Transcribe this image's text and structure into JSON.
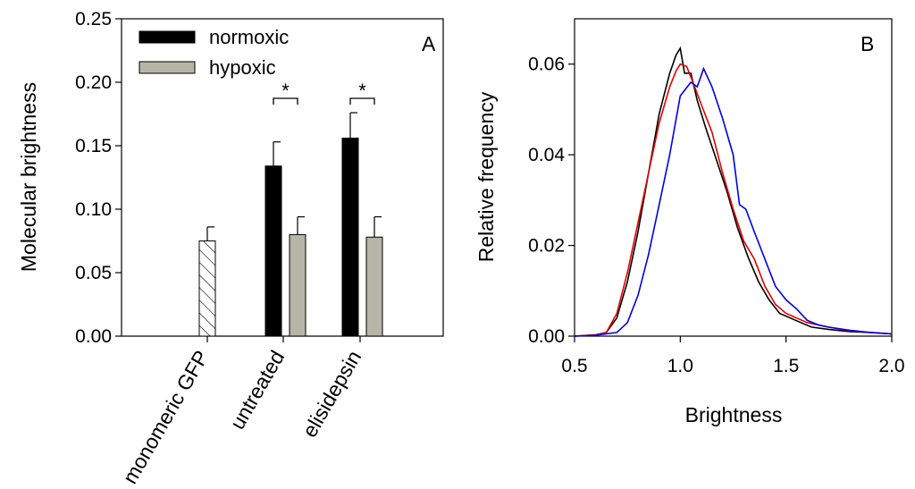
{
  "chart_data": [
    {
      "panel": "A",
      "type": "bar",
      "ylabel": "Molecular brightness",
      "xlabel": "",
      "ylim": [
        0,
        0.25
      ],
      "yticks": [
        "0.00",
        "0.05",
        "0.10",
        "0.15",
        "0.20",
        "0.25"
      ],
      "yticks_values": [
        0,
        0.05,
        0.1,
        0.15,
        0.2,
        0.25
      ],
      "categories": [
        "monomeric GFP",
        "untreated",
        "elisidepsin"
      ],
      "bars": [
        {
          "category": "monomeric GFP",
          "series": "monomeric GFP",
          "value": 0.075,
          "error": 0.011
        },
        {
          "category": "untreated",
          "series": "normoxic",
          "value": 0.134,
          "error": 0.019
        },
        {
          "category": "untreated",
          "series": "hypoxic",
          "value": 0.08,
          "error": 0.014
        },
        {
          "category": "elisidepsin",
          "series": "normoxic",
          "value": 0.156,
          "error": 0.02
        },
        {
          "category": "elisidepsin",
          "series": "hypoxic",
          "value": 0.078,
          "error": 0.016
        }
      ],
      "legend": [
        {
          "label": "normoxic",
          "color": "#000000"
        },
        {
          "label": "hypoxic",
          "color": "#b5b5a8"
        }
      ],
      "legend_position": "top-left",
      "significance": [
        {
          "category": "untreated",
          "label": "*"
        },
        {
          "category": "elisidepsin",
          "label": "*"
        }
      ]
    },
    {
      "panel": "B",
      "type": "line",
      "xlabel": "Brightness",
      "ylabel": "Relative frequency",
      "xlim": [
        0.5,
        2.0
      ],
      "ylim": [
        0,
        0.07
      ],
      "xticks": [
        "0.5",
        "1.0",
        "1.5",
        "2.0"
      ],
      "xticks_values": [
        0.5,
        1.0,
        1.5,
        2.0
      ],
      "yticks": [
        "0.00",
        "0.02",
        "0.04",
        "0.06"
      ],
      "yticks_values": [
        0,
        0.02,
        0.04,
        0.06
      ],
      "series": [
        {
          "name": "black",
          "color": "#000000",
          "points": [
            [
              0.5,
              0.0
            ],
            [
              0.6,
              0.0003
            ],
            [
              0.65,
              0.0008
            ],
            [
              0.7,
              0.004
            ],
            [
              0.75,
              0.012
            ],
            [
              0.8,
              0.023
            ],
            [
              0.85,
              0.036
            ],
            [
              0.9,
              0.049
            ],
            [
              0.95,
              0.058
            ],
            [
              0.98,
              0.062
            ],
            [
              1.0,
              0.0635
            ],
            [
              1.02,
              0.058
            ],
            [
              1.05,
              0.058
            ],
            [
              1.08,
              0.052
            ],
            [
              1.12,
              0.046
            ],
            [
              1.17,
              0.039
            ],
            [
              1.22,
              0.032
            ],
            [
              1.27,
              0.024
            ],
            [
              1.32,
              0.0175
            ],
            [
              1.37,
              0.012
            ],
            [
              1.42,
              0.008
            ],
            [
              1.47,
              0.005
            ],
            [
              1.52,
              0.004
            ],
            [
              1.57,
              0.003
            ],
            [
              1.62,
              0.002
            ],
            [
              1.7,
              0.0015
            ],
            [
              1.8,
              0.001
            ],
            [
              1.9,
              0.0008
            ],
            [
              2.0,
              0.0005
            ]
          ]
        },
        {
          "name": "red",
          "color": "#e00000",
          "points": [
            [
              0.5,
              0.0
            ],
            [
              0.6,
              0.0003
            ],
            [
              0.65,
              0.0008
            ],
            [
              0.7,
              0.005
            ],
            [
              0.75,
              0.014
            ],
            [
              0.8,
              0.025
            ],
            [
              0.85,
              0.036
            ],
            [
              0.9,
              0.047
            ],
            [
              0.95,
              0.055
            ],
            [
              0.98,
              0.0585
            ],
            [
              1.0,
              0.06
            ],
            [
              1.03,
              0.0595
            ],
            [
              1.06,
              0.056
            ],
            [
              1.1,
              0.051
            ],
            [
              1.15,
              0.045
            ],
            [
              1.2,
              0.036
            ],
            [
              1.25,
              0.028
            ],
            [
              1.3,
              0.021
            ],
            [
              1.35,
              0.017
            ],
            [
              1.4,
              0.011
            ],
            [
              1.45,
              0.007
            ],
            [
              1.5,
              0.005
            ],
            [
              1.55,
              0.004
            ],
            [
              1.6,
              0.003
            ],
            [
              1.7,
              0.002
            ],
            [
              1.8,
              0.0012
            ],
            [
              1.9,
              0.0008
            ],
            [
              2.0,
              0.0005
            ]
          ]
        },
        {
          "name": "blue",
          "color": "#0000e0",
          "points": [
            [
              0.5,
              0.0
            ],
            [
              0.6,
              0.0002
            ],
            [
              0.7,
              0.0008
            ],
            [
              0.75,
              0.003
            ],
            [
              0.8,
              0.009
            ],
            [
              0.85,
              0.018
            ],
            [
              0.9,
              0.029
            ],
            [
              0.95,
              0.04
            ],
            [
              1.0,
              0.053
            ],
            [
              1.05,
              0.056
            ],
            [
              1.08,
              0.055
            ],
            [
              1.11,
              0.059
            ],
            [
              1.15,
              0.055
            ],
            [
              1.2,
              0.048
            ],
            [
              1.25,
              0.04
            ],
            [
              1.28,
              0.029
            ],
            [
              1.31,
              0.028
            ],
            [
              1.35,
              0.023
            ],
            [
              1.4,
              0.017
            ],
            [
              1.45,
              0.011
            ],
            [
              1.5,
              0.008
            ],
            [
              1.55,
              0.006
            ],
            [
              1.6,
              0.0035
            ],
            [
              1.65,
              0.0025
            ],
            [
              1.7,
              0.002
            ],
            [
              1.8,
              0.0013
            ],
            [
              1.9,
              0.0008
            ],
            [
              2.0,
              0.0005
            ]
          ]
        }
      ],
      "panel_label": "B"
    }
  ]
}
